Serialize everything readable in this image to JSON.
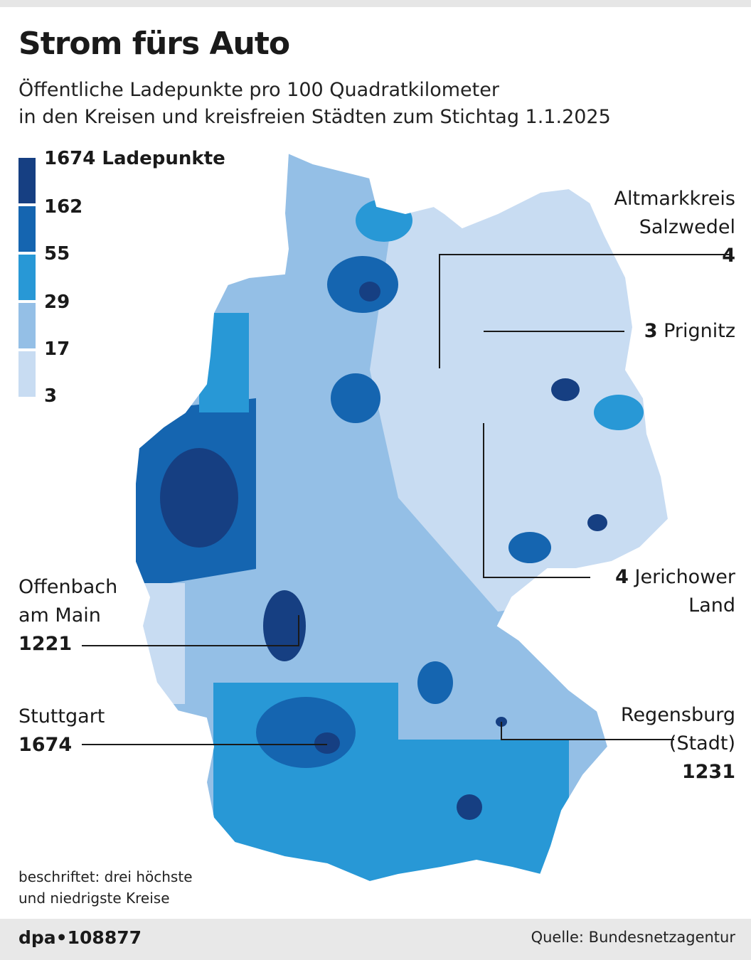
{
  "header": {
    "title": "Strom fürs Auto",
    "subtitle_line1": "Öffentliche Ladepunkte pro 100 Quadratkilometer",
    "subtitle_line2": "in den Kreisen und kreisfreien Städten zum Stichtag 1.1.2025"
  },
  "legend": {
    "labels": [
      "1674 Ladepunkte",
      "162",
      "55",
      "29",
      "17",
      "3"
    ],
    "colors": [
      "#163f82",
      "#1565b0",
      "#2898d6",
      "#94bfe6",
      "#c8dcf2"
    ]
  },
  "annotations": {
    "altmark": {
      "name1": "Altmarkkreis",
      "name2": "Salzwedel",
      "value": "4"
    },
    "prignitz": {
      "value": "3",
      "name": "Prignitz"
    },
    "jerichow": {
      "value": "4",
      "name1": "Jerichower",
      "name2": "Land"
    },
    "offenbach": {
      "name1": "Offenbach",
      "name2": "am Main",
      "value": "1221"
    },
    "stuttgart": {
      "name": "Stuttgart",
      "value": "1674"
    },
    "regensburg": {
      "name1": "Regensburg",
      "name2": "(Stadt)",
      "value": "1231"
    }
  },
  "note": {
    "line1": "beschriftet: drei höchste",
    "line2": "und niedrigste Kreise"
  },
  "footer": {
    "agency": "dpa•108877",
    "source": "Quelle: Bundesnetzagentur"
  }
}
